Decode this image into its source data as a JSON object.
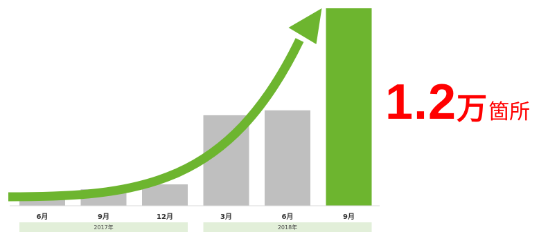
{
  "chart_data": {
    "type": "bar",
    "categories": [
      "6月",
      "9月",
      "12月",
      "3月",
      "6月",
      "9月"
    ],
    "values": [
      0.05,
      0.1,
      0.13,
      0.55,
      0.58,
      1.2
    ],
    "ylim": [
      0,
      1.2
    ],
    "year_groups": [
      {
        "label": "2017年",
        "start": 0,
        "end": 2
      },
      {
        "label": "2018年",
        "start": 3,
        "end": 5
      }
    ],
    "bar_color": "#bfbfbf",
    "highlight_color": "#6db52f",
    "highlight_index": 5,
    "trend_arrow": true,
    "arrow_color": "#6db52f",
    "year_band_color": "#e2efd9",
    "grid": false
  },
  "headline": {
    "value": "1.2",
    "unit_big": "万",
    "unit_small": "箇所",
    "color": "#ff0000"
  }
}
